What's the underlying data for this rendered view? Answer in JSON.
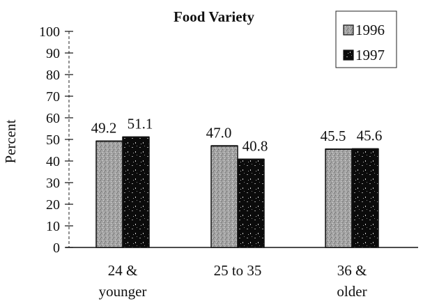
{
  "chart_data": {
    "type": "bar",
    "title": "Food Variety",
    "xlabel": "",
    "ylabel": "Percent",
    "ylim": [
      0,
      100
    ],
    "yticks": [
      0,
      10,
      20,
      30,
      40,
      50,
      60,
      70,
      80,
      90,
      100
    ],
    "categories": [
      [
        "24 &",
        "younger"
      ],
      [
        "25 to 35"
      ],
      [
        "36 &",
        "older"
      ]
    ],
    "series": [
      {
        "name": "1996",
        "values": [
          49.2,
          47.0,
          45.5
        ],
        "value_labels": [
          "49.2",
          "47.0",
          "45.5"
        ],
        "color": "#a6a6a6"
      },
      {
        "name": "1997",
        "values": [
          51.1,
          40.8,
          45.6
        ],
        "value_labels": [
          "51.1",
          "40.8",
          "45.6"
        ],
        "color": "#0d0d0d"
      }
    ],
    "legend": "top-right",
    "grid": false
  }
}
